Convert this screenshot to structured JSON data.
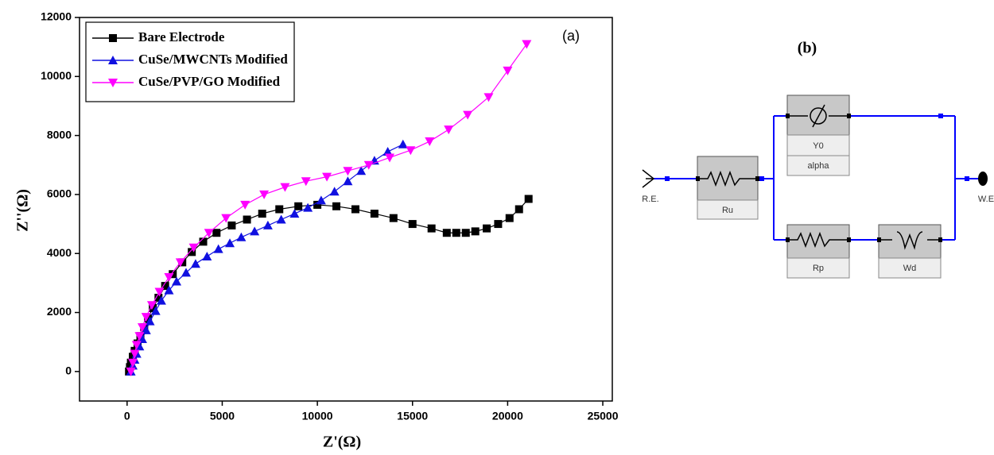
{
  "chart_data": {
    "type": "line",
    "annotation": "(a)",
    "x_label": "Z'(Ω)",
    "y_label": "Z''(Ω)",
    "xlim": [
      -2500,
      25500
    ],
    "ylim": [
      -1000,
      12000
    ],
    "xticks": [
      0,
      5000,
      10000,
      15000,
      20000,
      25000
    ],
    "yticks": [
      0,
      2000,
      4000,
      6000,
      8000,
      10000,
      12000
    ],
    "legend": "upper left",
    "series": [
      {
        "name": "Bare Electrode",
        "color": "#000000",
        "marker": "square",
        "x": [
          100,
          150,
          200,
          300,
          400,
          550,
          700,
          900,
          1100,
          1350,
          1650,
          2000,
          2400,
          2900,
          3400,
          4000,
          4700,
          5500,
          6300,
          7100,
          8000,
          9000,
          10000,
          11000,
          12000,
          13000,
          14000,
          15000,
          16000,
          16800,
          17300,
          17800,
          18300,
          18900,
          19500,
          20100,
          20600,
          21100
        ],
        "values": [
          0,
          150,
          300,
          500,
          700,
          950,
          1200,
          1500,
          1800,
          2150,
          2500,
          2900,
          3300,
          3700,
          4050,
          4400,
          4700,
          4950,
          5150,
          5350,
          5500,
          5600,
          5650,
          5600,
          5500,
          5350,
          5200,
          5000,
          4850,
          4700,
          4700,
          4700,
          4750,
          4850,
          5000,
          5200,
          5500,
          5850
        ]
      },
      {
        "name": "CuSe/MWCNTs Modified",
        "color": "#1010e0",
        "marker": "triangle-up",
        "x": [
          200,
          300,
          400,
          500,
          650,
          800,
          1000,
          1200,
          1500,
          1800,
          2200,
          2600,
          3100,
          3600,
          4200,
          4800,
          5400,
          6000,
          6700,
          7400,
          8100,
          8800,
          9500,
          10200,
          10900,
          11600,
          12300,
          13000,
          13700,
          14500
        ],
        "values": [
          0,
          200,
          400,
          600,
          850,
          1100,
          1400,
          1700,
          2050,
          2400,
          2750,
          3050,
          3350,
          3650,
          3900,
          4150,
          4350,
          4550,
          4750,
          4950,
          5150,
          5350,
          5550,
          5800,
          6100,
          6450,
          6800,
          7150,
          7450,
          7700
        ]
      },
      {
        "name": "CuSe/PVP/GO Modified",
        "color": "#ff00ff",
        "marker": "triangle-down",
        "x": [
          200,
          300,
          400,
          500,
          650,
          800,
          1000,
          1300,
          1700,
          2200,
          2800,
          3500,
          4300,
          5200,
          6200,
          7200,
          8300,
          9400,
          10500,
          11600,
          12700,
          13800,
          14900,
          15900,
          16900,
          17900,
          19000,
          20000,
          21000
        ],
        "values": [
          0,
          300,
          600,
          900,
          1200,
          1500,
          1850,
          2250,
          2700,
          3200,
          3700,
          4200,
          4700,
          5200,
          5650,
          6000,
          6250,
          6450,
          6600,
          6800,
          7000,
          7250,
          7500,
          7800,
          8200,
          8700,
          9300,
          10200,
          11100
        ]
      }
    ]
  },
  "diagram": {
    "title": "(b)",
    "reference_electrode": "R.E.",
    "working_electrode": "W.E",
    "components": [
      "Ru",
      "Y0",
      "alpha",
      "Rp",
      "Wd"
    ]
  }
}
